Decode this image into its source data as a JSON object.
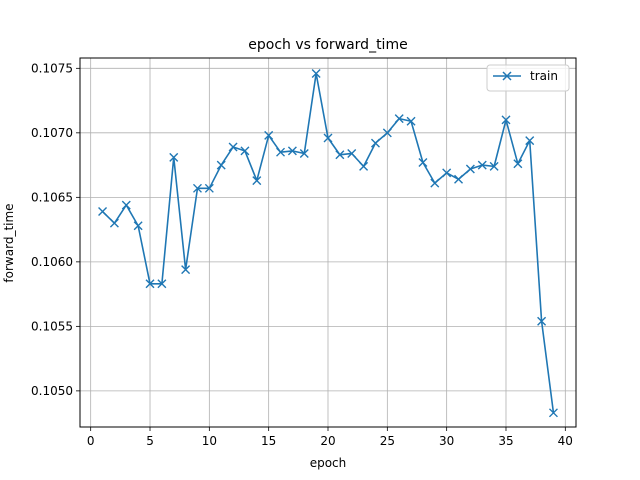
{
  "chart_data": {
    "type": "line",
    "title": "epoch vs forward_time",
    "xlabel": "epoch",
    "ylabel": "forward_time",
    "xlim": [
      -0.9,
      40.9
    ],
    "ylim": [
      0.10472,
      0.10758
    ],
    "xticks": [
      0,
      5,
      10,
      15,
      20,
      25,
      30,
      35,
      40
    ],
    "xtick_labels": [
      "0",
      "5",
      "10",
      "15",
      "20",
      "25",
      "30",
      "35",
      "40"
    ],
    "yticks": [
      0.105,
      0.1055,
      0.106,
      0.1065,
      0.107,
      0.1075
    ],
    "ytick_labels": [
      "0.1050",
      "0.1055",
      "0.1060",
      "0.1065",
      "0.1070",
      "0.1075"
    ],
    "grid": true,
    "legend_position": "top-right",
    "series": [
      {
        "name": "train",
        "color": "#1f77b4",
        "marker": "x",
        "x": [
          1,
          2,
          3,
          4,
          5,
          6,
          7,
          8,
          9,
          10,
          11,
          12,
          13,
          14,
          15,
          16,
          17,
          18,
          19,
          20,
          21,
          22,
          23,
          24,
          25,
          26,
          27,
          28,
          29,
          30,
          31,
          32,
          33,
          34,
          35,
          36,
          37,
          38,
          39
        ],
        "y": [
          0.10639,
          0.1063,
          0.10644,
          0.10628,
          0.10583,
          0.10583,
          0.10681,
          0.10594,
          0.10657,
          0.10657,
          0.10675,
          0.10689,
          0.10686,
          0.10663,
          0.10698,
          0.10685,
          0.10686,
          0.10684,
          0.10746,
          0.10696,
          0.10683,
          0.10684,
          0.10674,
          0.10692,
          0.107,
          0.10711,
          0.10709,
          0.10677,
          0.10661,
          0.10669,
          0.10664,
          0.10672,
          0.10675,
          0.10674,
          0.1071,
          0.10676,
          0.10694,
          0.10554,
          0.10483
        ]
      }
    ]
  }
}
